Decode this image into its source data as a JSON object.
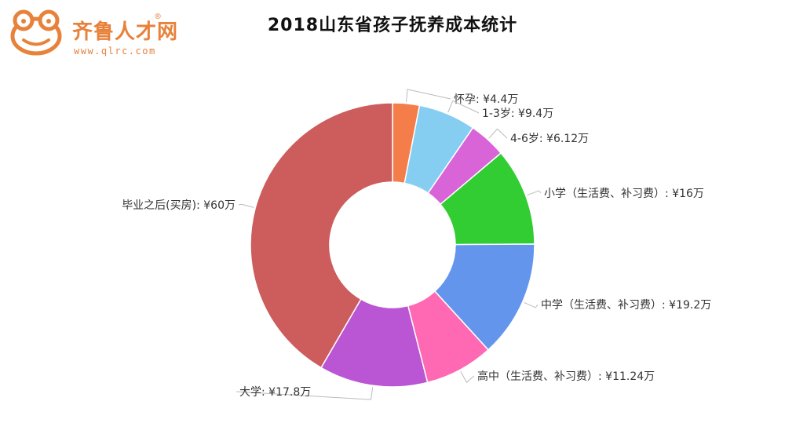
{
  "logo": {
    "brand_text": "齐鲁人才网",
    "reg_mark": "®",
    "url": "www.qlrc.com",
    "icon": "frog-icon",
    "brand_color": "#e8813a"
  },
  "chart_data": {
    "type": "donut",
    "title": "2018山东省孩子抚养成本统计",
    "unit": "万",
    "slices": [
      {
        "label": "怀孕",
        "value": 4.4,
        "display": "怀孕: ¥4.4万",
        "color": "#f47d4a"
      },
      {
        "label": "1-3岁",
        "value": 9.4,
        "display": "1-3岁: ¥9.4万",
        "color": "#85cef1"
      },
      {
        "label": "4-6岁",
        "value": 6.12,
        "display": "4-6岁: ¥6.12万",
        "color": "#d864d8"
      },
      {
        "label": "小学（生活费、补习费）",
        "value": 16,
        "display": "小学（生活费、补习费）: ¥16万",
        "color": "#32cd32"
      },
      {
        "label": "中学（生活费、补习费）",
        "value": 19.2,
        "display": "中学（生活费、补习费）: ¥19.2万",
        "color": "#6495ed"
      },
      {
        "label": "高中（生活费、补习费）",
        "value": 11.24,
        "display": "高中（生活费、补习费）: ¥11.24万",
        "color": "#ff69b4"
      },
      {
        "label": "大学",
        "value": 17.8,
        "display": "大学: ¥17.8万",
        "color": "#ba55d3"
      },
      {
        "label": "毕业之后(买房)",
        "value": 60,
        "display": "毕业之后(买房): ¥60万",
        "color": "#cd5c5c"
      }
    ]
  }
}
